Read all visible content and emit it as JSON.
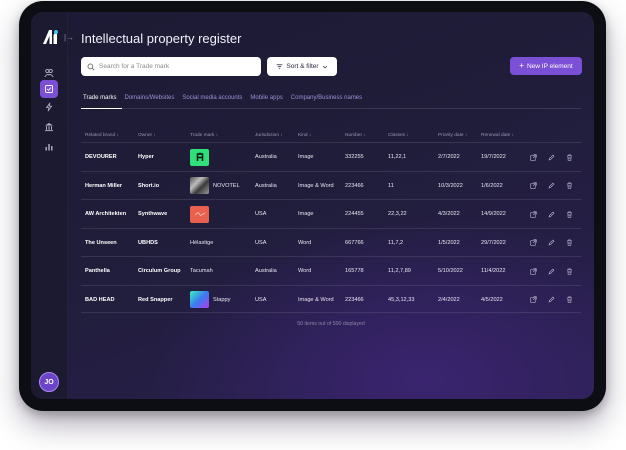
{
  "app": {
    "title": "Intellectual property register",
    "logo_icon": "app-logo-icon",
    "collapse_icon": "collapse-sidebar-icon",
    "user_initials": "JO",
    "accent_color": "#7b4fd6"
  },
  "sidebar": {
    "items": [
      {
        "name": "people",
        "icon": "people-icon",
        "active": false
      },
      {
        "name": "register",
        "icon": "register-check-icon",
        "active": true
      },
      {
        "name": "activity",
        "icon": "lightning-icon",
        "active": false
      },
      {
        "name": "institution",
        "icon": "building-icon",
        "active": false
      },
      {
        "name": "analytics",
        "icon": "bar-chart-icon",
        "active": false
      }
    ]
  },
  "toolbar": {
    "search_placeholder": "Search for a Trade mark",
    "sort_label": "Sort & filter",
    "new_label": "New IP element"
  },
  "tabs": [
    {
      "label": "Trade marks",
      "active": true
    },
    {
      "label": "Domains/Websites",
      "active": false
    },
    {
      "label": "Social media accounts",
      "active": false
    },
    {
      "label": "Mobile apps",
      "active": false
    },
    {
      "label": "Company/Business names",
      "active": false
    }
  ],
  "table": {
    "headers": [
      "Related brand",
      "Owner",
      "Trade mark",
      "Jurisdiction",
      "Kind",
      "Number",
      "Classes",
      "Priority date",
      "Renewal date"
    ],
    "rows": [
      {
        "brand": "DEVOURER",
        "owner": "Hyper",
        "trademark": "",
        "tm_image": "a-letter-logo",
        "jurisdiction": "Australia",
        "kind": "Image",
        "number": "332255",
        "classes": "11,22,1",
        "priority": "2/7/2022",
        "renewal": "19/7/2022"
      },
      {
        "brand": "Herman Miller",
        "owner": "Short.io",
        "trademark": "NOVOTEL",
        "tm_image": "marble-texture",
        "jurisdiction": "Australia",
        "kind": "Image & Word",
        "number": "223466",
        "classes": "11",
        "priority": "10/3/2022",
        "renewal": "1/6/2022"
      },
      {
        "brand": "AW Architekten",
        "owner": "Synthwave",
        "trademark": "",
        "tm_image": "wave-logo",
        "jurisdiction": "USA",
        "kind": "Image",
        "number": "224455",
        "classes": "22,3,22",
        "priority": "4/3/2022",
        "renewal": "14/9/2022"
      },
      {
        "brand": "The Unseen",
        "owner": "UBHDS",
        "trademark": "Hélastige",
        "tm_image": "",
        "jurisdiction": "USA",
        "kind": "Word",
        "number": "667766",
        "classes": "11,7,2",
        "priority": "1/5/2022",
        "renewal": "29/7/2022"
      },
      {
        "brand": "Panthella",
        "owner": "Circulum Group",
        "trademark": "Tacumah",
        "tm_image": "",
        "jurisdiction": "Australia",
        "kind": "Word",
        "number": "165778",
        "classes": "11,2,7,89",
        "priority": "5/10/2022",
        "renewal": "11/4/2022"
      },
      {
        "brand": "BAD HEAD",
        "owner": "Red Snapper",
        "trademark": "Stappy",
        "tm_image": "gradient-swatch",
        "jurisdiction": "USA",
        "kind": "Image & Word",
        "number": "223466",
        "classes": "45,3,12,33",
        "priority": "2/4/2022",
        "renewal": "4/5/2022"
      }
    ],
    "row_actions": [
      "open-external-icon",
      "edit-pencil-icon",
      "delete-trash-icon"
    ]
  },
  "footer": {
    "summary": "50 items out of 500 displayed"
  }
}
